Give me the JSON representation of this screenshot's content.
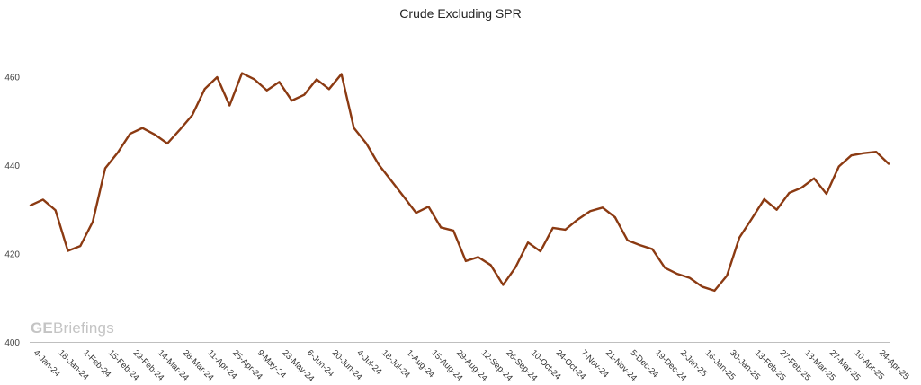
{
  "chart_data": {
    "type": "line",
    "title": "Crude Excluding SPR",
    "xlabel": "",
    "ylabel": "",
    "ylim": [
      400,
      470
    ],
    "yticks": [
      400,
      420,
      440,
      460
    ],
    "grid": false,
    "legend": "none",
    "line_color": "#8B3A12",
    "x_tick_labels": [
      "4-Jan-24",
      "18-Jan-24",
      "1-Feb-24",
      "15-Feb-24",
      "29-Feb-24",
      "14-Mar-24",
      "28-Mar-24",
      "11-Apr-24",
      "25-Apr-24",
      "9-May-24",
      "23-May-24",
      "6-Jun-24",
      "20-Jun-24",
      "4-Jul-24",
      "18-Jul-24",
      "1-Aug-24",
      "15-Aug-24",
      "29-Aug-24",
      "12-Sep-24",
      "26-Sep-24",
      "10-Oct-24",
      "24-Oct-24",
      "7-Nov-24",
      "21-Nov-24",
      "5-Dec-24",
      "19-Dec-24",
      "2-Jan-25",
      "16-Jan-25",
      "30-Jan-25",
      "13-Feb-25",
      "27-Feb-25",
      "13-Mar-25",
      "27-Mar-25",
      "10-Apr-25",
      "24-Apr-25"
    ],
    "series": [
      {
        "values": [
          431.0,
          432.3,
          429.9,
          420.7,
          421.8,
          427.3,
          439.4,
          442.9,
          447.2,
          448.5,
          447.0,
          445.0,
          448.1,
          451.4,
          457.3,
          460.0,
          453.6,
          460.9,
          459.5,
          457.0,
          458.9,
          454.7,
          456.0,
          459.5,
          457.3,
          460.7,
          448.5,
          445.0,
          440.2,
          436.6,
          433.0,
          429.3,
          430.7,
          426.0,
          425.3,
          418.4,
          419.3,
          417.5,
          413.0,
          417.0,
          422.6,
          420.6,
          425.9,
          425.5,
          427.8,
          429.7,
          430.5,
          428.3,
          423.1,
          422.0,
          421.1,
          416.9,
          415.5,
          414.6,
          412.6,
          411.7,
          415.1,
          423.7,
          428.0,
          432.4,
          430.0,
          433.8,
          435.0,
          437.1,
          433.6,
          439.8,
          442.3,
          442.8,
          443.1,
          440.4
        ]
      }
    ]
  },
  "watermark": {
    "bold": "GE",
    "rest": "Briefings"
  }
}
